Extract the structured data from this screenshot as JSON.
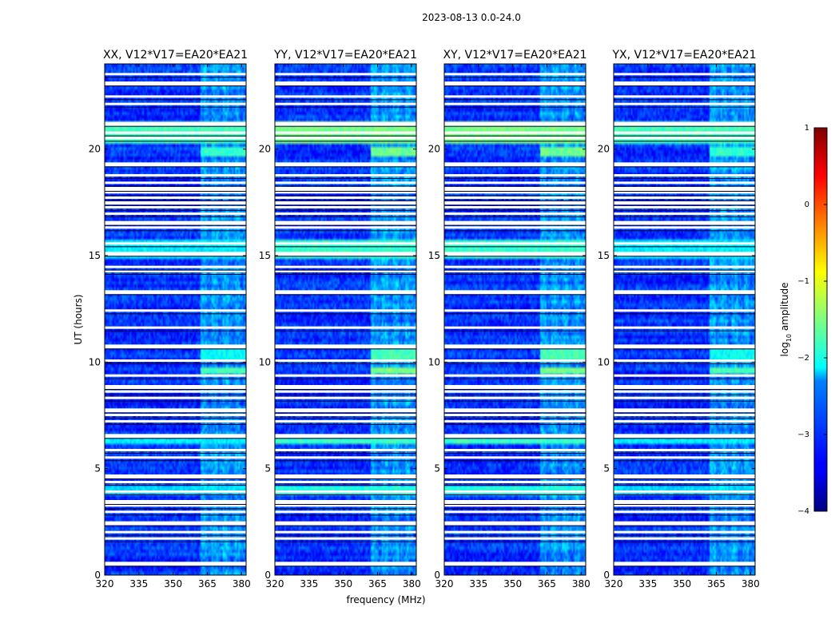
{
  "figure": {
    "suptitle": "2023-08-13 0.0-24.0"
  },
  "chart_data": {
    "type": "heatmap",
    "xlabel": "frequency (MHz)",
    "ylabel": "UT (hours)",
    "xlim": [
      320,
      382
    ],
    "ylim": [
      0,
      24
    ],
    "xticks": [
      320,
      335,
      350,
      365,
      380
    ],
    "yticks": [
      0,
      5,
      10,
      15,
      20
    ],
    "panels": [
      {
        "title": "XX, V12*V17=EA20*EA21"
      },
      {
        "title": "YY, V12*V17=EA20*EA21"
      },
      {
        "title": "XY, V12*V17=EA20*EA21"
      },
      {
        "title": "YX, V12*V17=EA20*EA21"
      }
    ],
    "colorbar": {
      "label_base": "log",
      "label_sub": "10",
      "label_rest": " amplitude",
      "range": [
        -4,
        1
      ],
      "ticks": [
        "−4",
        "−3",
        "−2",
        "−1",
        "0",
        "1"
      ],
      "tick_values": [
        -4,
        -3,
        -2,
        -1,
        0,
        1
      ],
      "colormap": "jet"
    },
    "flagged_hours": [
      0.55,
      1.7,
      2.0,
      2.45,
      2.95,
      3.25,
      3.45,
      3.9,
      4.35,
      4.65,
      5.5,
      5.85,
      6.55,
      7.2,
      7.5,
      7.75,
      8.3,
      8.6,
      8.85,
      9.35,
      10.05,
      10.75,
      11.6,
      12.4,
      13.3,
      14.25,
      14.45,
      15.1,
      15.55,
      16.3,
      16.55,
      16.95,
      17.25,
      17.5,
      17.7,
      17.95,
      18.15,
      18.4,
      18.75,
      19.3,
      20.5,
      20.75,
      21.2,
      22.1,
      22.45,
      23.1,
      23.5
    ],
    "bright_features": [
      {
        "hours": [
          9.4,
          9.8
        ],
        "freq_min": 362,
        "level": -1.8
      },
      {
        "hours": [
          10.0,
          10.6
        ],
        "freq_min": 362,
        "level": -2.1
      },
      {
        "hours": [
          19.6,
          20.1
        ],
        "freq_min": 362,
        "level": -1.9
      },
      {
        "hours": [
          20.3,
          21.3
        ],
        "freq_min": 320,
        "level": -1.8
      },
      {
        "hours": [
          14.8,
          15.8
        ],
        "freq_min": 320,
        "level": -2.2
      },
      {
        "hours": [
          3.7,
          4.2
        ],
        "freq_min": 320,
        "level": -2.3
      },
      {
        "hours": [
          6.2,
          6.4
        ],
        "freq_min": 320,
        "level": -2.2
      }
    ],
    "rfi_band_mhz": [
      362,
      382
    ]
  }
}
